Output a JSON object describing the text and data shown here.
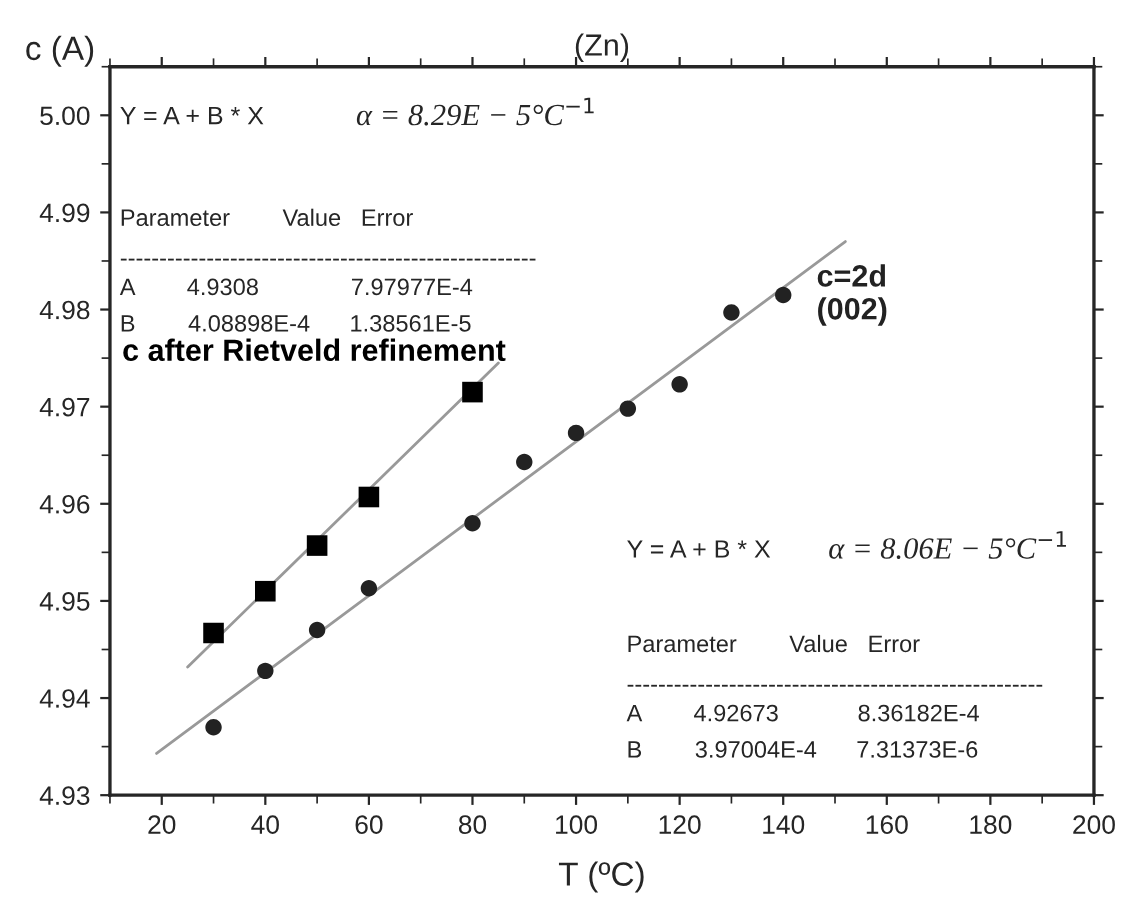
{
  "chart_data": {
    "type": "scatter",
    "title": "(Zn)",
    "xlabel": "T (ºC)",
    "ylabel": "c (A)",
    "xlim": [
      10,
      200
    ],
    "xticks": [
      20,
      40,
      60,
      80,
      100,
      120,
      140,
      160,
      180,
      200
    ],
    "ylim": [
      4.93,
      5.005
    ],
    "yticks": [
      {
        "value": 4.93,
        "label": "4.93"
      },
      {
        "value": 4.94,
        "label": "4.94"
      },
      {
        "value": 4.95,
        "label": "4.95"
      },
      {
        "value": 4.96,
        "label": "4.96"
      },
      {
        "value": 4.97,
        "label": "4.97"
      },
      {
        "value": 4.98,
        "label": "4.98"
      },
      {
        "value": 4.99,
        "label": "4.99"
      },
      {
        "value": 5.0,
        "label": "5.00"
      }
    ],
    "grid": false,
    "series": [
      {
        "name": "c after Rietveld refinement",
        "marker": "square",
        "color": "#000000",
        "x": [
          30,
          40,
          50,
          60,
          80
        ],
        "values": [
          4.9467,
          4.951,
          4.9557,
          4.9607,
          4.9715
        ]
      },
      {
        "name": "c=2d\n(002)",
        "marker": "circle",
        "color": "#222222",
        "x": [
          30,
          40,
          50,
          60,
          80,
          90,
          100,
          110,
          120,
          130,
          140
        ],
        "values": [
          4.937,
          4.9428,
          4.947,
          4.9513,
          4.958,
          4.9643,
          4.9673,
          4.9698,
          4.9723,
          4.9797,
          4.9815
        ]
      },
      {
        "type": "line",
        "color": "#999999",
        "x": [
          25,
          85
        ],
        "values": [
          4.9432,
          4.9745
        ]
      },
      {
        "type": "line",
        "color": "#999999",
        "x": [
          19,
          152
        ],
        "values": [
          4.9343,
          4.987
        ]
      }
    ],
    "annotations": [
      "Y = A + B * X",
      "α = 8.29E − 5°C$^{−1}$",
      "Parameter        Value   Error",
      "-----------------------------------------------------",
      "A        4.9308              7.97977E-4",
      "B        4.08898E-4      1.38561E-5",
      "Y = A + B * X",
      "α = 8.06E − 5°C$^{−1}$",
      "Parameter        Value   Error",
      "-----------------------------------------------------",
      "A        4.92673            8.36182E-4",
      "B        3.97004E-4      7.31373E-6"
    ]
  }
}
